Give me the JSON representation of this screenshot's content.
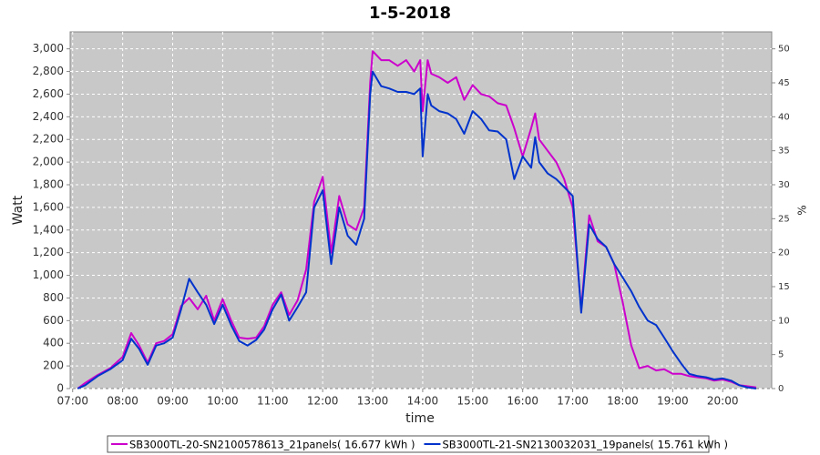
{
  "chart_data": {
    "type": "line",
    "title": "1-5-2018",
    "xlabel": "time",
    "ylabel": "Watt",
    "y2label": "%",
    "grid": true,
    "legend": "bottom",
    "xlim": [
      6.95,
      20.98
    ],
    "ylim": [
      0,
      3150
    ],
    "y2lim": [
      0,
      52.5
    ],
    "xticks": [
      {
        "value": 7,
        "label": "07:00"
      },
      {
        "value": 8,
        "label": "08:00"
      },
      {
        "value": 9,
        "label": "09:00"
      },
      {
        "value": 10,
        "label": "10:00"
      },
      {
        "value": 11,
        "label": "11:00"
      },
      {
        "value": 12,
        "label": "12:00"
      },
      {
        "value": 13,
        "label": "13:00"
      },
      {
        "value": 14,
        "label": "14:00"
      },
      {
        "value": 15,
        "label": "15:00"
      },
      {
        "value": 16,
        "label": "16:00"
      },
      {
        "value": 17,
        "label": "17:00"
      },
      {
        "value": 18,
        "label": "18:00"
      },
      {
        "value": 19,
        "label": "19:00"
      },
      {
        "value": 20,
        "label": "20:00"
      }
    ],
    "yticks": [
      0,
      200,
      400,
      600,
      800,
      {
        "value": 1000,
        "label": "1,000"
      },
      {
        "value": 1200,
        "label": "1,200"
      },
      {
        "value": 1400,
        "label": "1,400"
      },
      {
        "value": 1600,
        "label": "1,600"
      },
      {
        "value": 1800,
        "label": "1,800"
      },
      {
        "value": 2000,
        "label": "2,000"
      },
      {
        "value": 2200,
        "label": "2,200"
      },
      {
        "value": 2400,
        "label": "2,400"
      },
      {
        "value": 2600,
        "label": "2,600"
      },
      {
        "value": 2800,
        "label": "2,800"
      },
      {
        "value": 3000,
        "label": "3,000"
      }
    ],
    "y2ticks": [
      0,
      5,
      10,
      15,
      20,
      25,
      30,
      35,
      40,
      45,
      50
    ],
    "x": [
      7.1,
      7.25,
      7.5,
      7.75,
      8.0,
      8.17,
      8.33,
      8.5,
      8.67,
      8.83,
      9.0,
      9.17,
      9.33,
      9.5,
      9.67,
      9.83,
      10.0,
      10.17,
      10.33,
      10.5,
      10.67,
      10.83,
      11.0,
      11.17,
      11.33,
      11.5,
      11.67,
      11.83,
      12.0,
      12.17,
      12.33,
      12.5,
      12.67,
      12.83,
      12.95,
      13.0,
      13.17,
      13.33,
      13.5,
      13.67,
      13.83,
      13.95,
      14.0,
      14.1,
      14.17,
      14.33,
      14.5,
      14.67,
      14.83,
      15.0,
      15.17,
      15.33,
      15.5,
      15.67,
      15.83,
      16.0,
      16.17,
      16.25,
      16.33,
      16.5,
      16.67,
      16.83,
      17.0,
      17.17,
      17.33,
      17.5,
      17.67,
      17.83,
      18.0,
      18.17,
      18.33,
      18.5,
      18.67,
      18.83,
      19.0,
      19.17,
      19.33,
      19.5,
      19.67,
      19.83,
      20.0,
      20.17,
      20.33,
      20.5,
      20.67
    ],
    "series": [
      {
        "name": "SB3000TL-20-SN2100578613_21panels( 16.677 kWh )",
        "color": "#cc00cc",
        "values": [
          0,
          50,
          120,
          180,
          280,
          490,
          380,
          230,
          400,
          420,
          480,
          730,
          800,
          700,
          820,
          600,
          790,
          600,
          450,
          440,
          450,
          550,
          740,
          850,
          650,
          780,
          1050,
          1650,
          1870,
          1200,
          1700,
          1450,
          1400,
          1600,
          2700,
          2980,
          2900,
          2900,
          2850,
          2900,
          2800,
          2900,
          2450,
          2900,
          2780,
          2750,
          2700,
          2750,
          2550,
          2680,
          2600,
          2580,
          2520,
          2500,
          2300,
          2050,
          2300,
          2430,
          2200,
          2100,
          2000,
          1850,
          1600,
          700,
          1530,
          1300,
          1250,
          1100,
          760,
          380,
          180,
          200,
          160,
          170,
          130,
          130,
          110,
          100,
          90,
          70,
          80,
          60,
          30,
          20,
          10
        ]
      },
      {
        "name": "SB3000TL-21-SN2130032031_19panels( 15.761 kWh )",
        "color": "#0033cc",
        "values": [
          0,
          30,
          110,
          170,
          250,
          440,
          350,
          210,
          380,
          400,
          450,
          700,
          970,
          850,
          740,
          570,
          740,
          560,
          420,
          380,
          430,
          520,
          700,
          830,
          600,
          720,
          850,
          1600,
          1750,
          1100,
          1600,
          1350,
          1270,
          1500,
          2600,
          2800,
          2670,
          2650,
          2620,
          2620,
          2600,
          2650,
          2050,
          2600,
          2500,
          2450,
          2430,
          2380,
          2250,
          2450,
          2380,
          2280,
          2270,
          2200,
          1850,
          2050,
          1950,
          2220,
          2000,
          1900,
          1850,
          1780,
          1700,
          670,
          1450,
          1320,
          1250,
          1100,
          980,
          860,
          720,
          600,
          560,
          450,
          330,
          220,
          130,
          110,
          100,
          80,
          90,
          70,
          30,
          10,
          0
        ]
      }
    ]
  }
}
